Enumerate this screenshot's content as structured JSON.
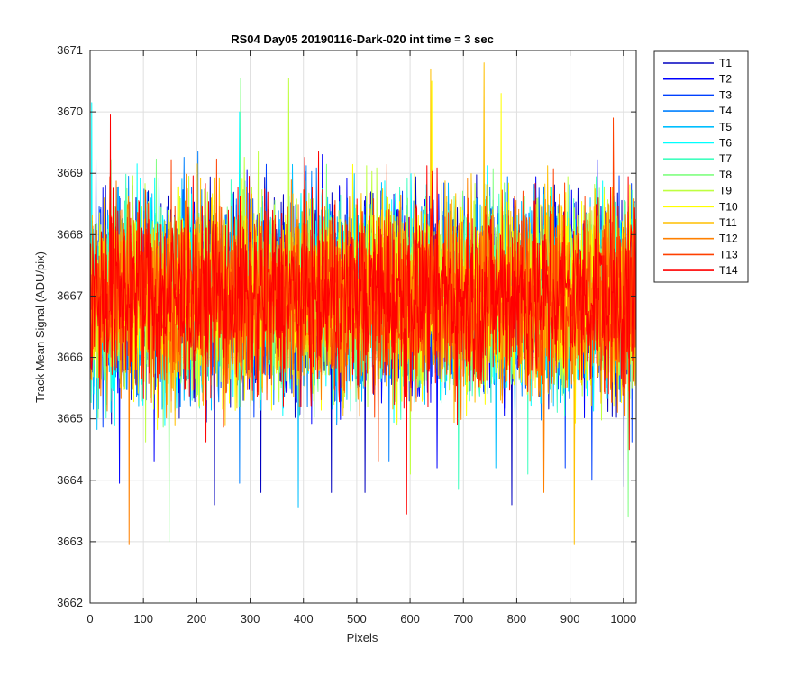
{
  "chart_data": {
    "type": "line",
    "title": "RS04 Day05 20190116-Dark-020 int time = 3 sec",
    "xlabel": "Pixels",
    "ylabel": "Track Mean Signal (ADU/pix)",
    "xlim": [
      0,
      1024
    ],
    "ylim": [
      3662,
      3671
    ],
    "xticks": [
      0,
      100,
      200,
      300,
      400,
      500,
      600,
      700,
      800,
      900,
      1000
    ],
    "yticks": [
      3662,
      3663,
      3664,
      3665,
      3666,
      3667,
      3668,
      3669,
      3670,
      3671
    ],
    "grid": true,
    "legend_position": "outside-top-right",
    "n_points": 1024,
    "series": [
      {
        "name": "T1",
        "color": "#0000bf",
        "mean": 3667.0,
        "spread": 0.8,
        "outliers": [
          [
            233,
            3663.6
          ],
          [
            320,
            3663.8
          ],
          [
            452,
            3663.8
          ],
          [
            515,
            3663.8
          ],
          [
            790,
            3663.6
          ],
          [
            1000,
            3663.9
          ]
        ]
      },
      {
        "name": "T2",
        "color": "#0000ff",
        "mean": 3667.0,
        "spread": 0.8,
        "outliers": [
          [
            55,
            3663.95
          ],
          [
            120,
            3664.3
          ],
          [
            650,
            3664.2
          ]
        ]
      },
      {
        "name": "T3",
        "color": "#0040ff",
        "mean": 3667.0,
        "spread": 0.8,
        "outliers": [
          [
            890,
            3664.2
          ],
          [
            940,
            3664.0
          ]
        ]
      },
      {
        "name": "T4",
        "color": "#0080ff",
        "mean": 3667.0,
        "spread": 0.8,
        "outliers": [
          [
            280,
            3663.95
          ],
          [
            560,
            3664.3
          ]
        ]
      },
      {
        "name": "T5",
        "color": "#00bfff",
        "mean": 3667.0,
        "spread": 0.8,
        "outliers": [
          [
            390,
            3663.55
          ],
          [
            760,
            3664.2
          ]
        ]
      },
      {
        "name": "T6",
        "color": "#00ffff",
        "mean": 3667.0,
        "spread": 0.8,
        "outliers": [
          [
            3,
            3670.15
          ],
          [
            280,
            3670.0
          ]
        ]
      },
      {
        "name": "T7",
        "color": "#40ffbf",
        "mean": 3667.0,
        "spread": 0.8,
        "outliers": [
          [
            690,
            3663.85
          ],
          [
            820,
            3664.1
          ]
        ]
      },
      {
        "name": "T8",
        "color": "#80ff80",
        "mean": 3667.0,
        "spread": 0.8,
        "outliers": [
          [
            148,
            3663.0
          ],
          [
            282,
            3670.55
          ],
          [
            1008,
            3663.4
          ]
        ]
      },
      {
        "name": "T9",
        "color": "#bfff40",
        "mean": 3667.0,
        "spread": 0.8,
        "outliers": [
          [
            372,
            3670.55
          ],
          [
            600,
            3664.1
          ]
        ]
      },
      {
        "name": "T10",
        "color": "#ffff00",
        "mean": 3667.0,
        "spread": 0.8,
        "outliers": [
          [
            640,
            3670.5
          ],
          [
            770,
            3670.3
          ]
        ]
      },
      {
        "name": "T11",
        "color": "#ffbf00",
        "mean": 3667.0,
        "spread": 0.8,
        "outliers": [
          [
            638,
            3670.7
          ],
          [
            738,
            3670.8
          ],
          [
            907,
            3662.95
          ]
        ]
      },
      {
        "name": "T12",
        "color": "#ff8000",
        "mean": 3667.0,
        "spread": 0.8,
        "outliers": [
          [
            73,
            3662.95
          ],
          [
            850,
            3663.8
          ]
        ]
      },
      {
        "name": "T13",
        "color": "#ff4000",
        "mean": 3667.0,
        "spread": 0.8,
        "outliers": [
          [
            540,
            3664.3
          ],
          [
            980,
            3669.9
          ]
        ]
      },
      {
        "name": "T14",
        "color": "#ff0000",
        "mean": 3667.0,
        "spread": 0.8,
        "outliers": [
          [
            38,
            3669.95
          ],
          [
            593,
            3663.45
          ],
          [
            1010,
            3664.5
          ]
        ]
      }
    ]
  }
}
